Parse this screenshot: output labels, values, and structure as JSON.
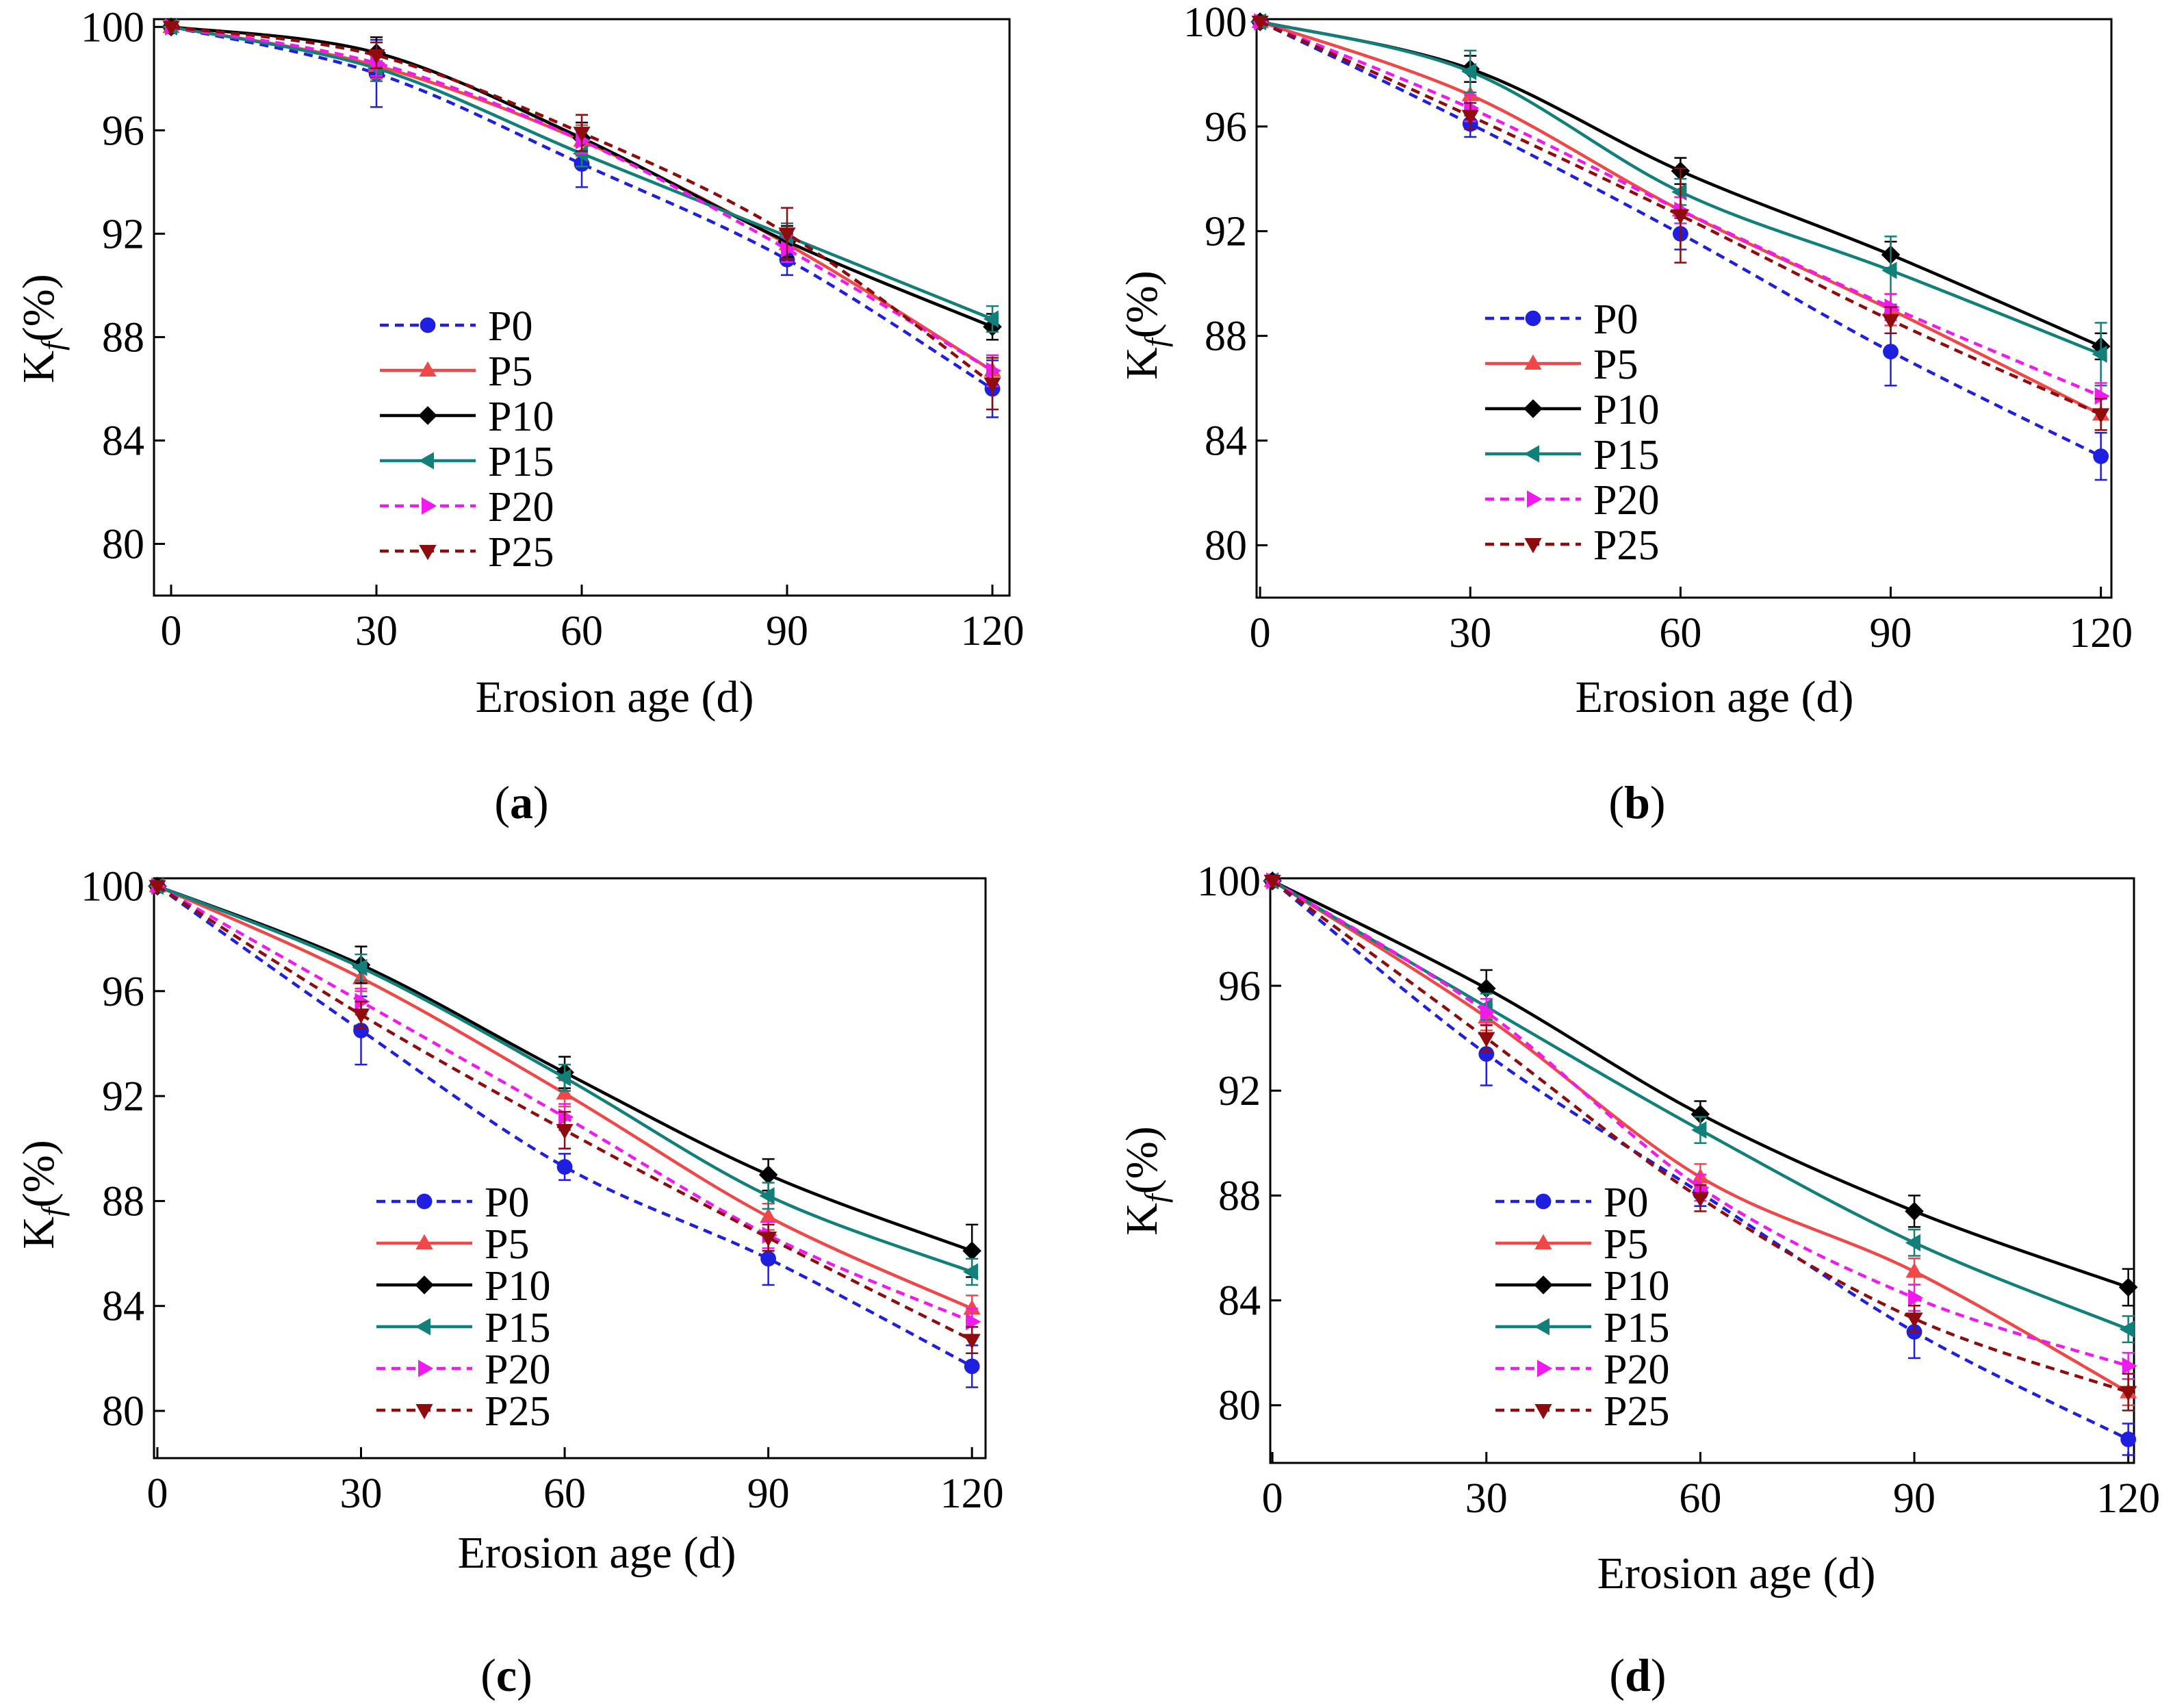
{
  "series_styles": [
    {
      "name": "P0",
      "color": "#1f1fe0",
      "dashed": true,
      "marker": "circle"
    },
    {
      "name": "P5",
      "color": "#f04848",
      "dashed": false,
      "marker": "triangle-up"
    },
    {
      "name": "P10",
      "color": "#000000",
      "dashed": false,
      "marker": "diamond"
    },
    {
      "name": "P15",
      "color": "#12807a",
      "dashed": false,
      "marker": "triangle-left"
    },
    {
      "name": "P20",
      "color": "#f01af0",
      "dashed": true,
      "marker": "triangle-right"
    },
    {
      "name": "P25",
      "color": "#900c0c",
      "dashed": true,
      "marker": "triangle-down"
    }
  ],
  "chart_data": [
    {
      "panel": "a",
      "type": "line",
      "xlabel": "Erosion age (d)",
      "ylabel": "Kf(%)",
      "x": [
        0,
        30,
        60,
        90,
        120
      ],
      "xticks": [
        0,
        30,
        60,
        90,
        120
      ],
      "yticks": [
        80,
        84,
        88,
        92,
        96,
        100
      ],
      "xlim": [
        -2.5,
        122.5
      ],
      "ylim": [
        78,
        100.3
      ],
      "legend": [
        "P0",
        "P5",
        "P10",
        "P15",
        "P20",
        "P25"
      ],
      "series": [
        {
          "name": "P0",
          "values": [
            100,
            98.2,
            94.7,
            91.0,
            86.0
          ],
          "errors": [
            0,
            1.3,
            0.9,
            0.6,
            1.1
          ]
        },
        {
          "name": "P5",
          "values": [
            100,
            98.5,
            95.6,
            91.6,
            86.7
          ],
          "errors": [
            0,
            0.5,
            0.6,
            0.5,
            0.6
          ]
        },
        {
          "name": "P10",
          "values": [
            100,
            99.0,
            95.7,
            91.7,
            88.4
          ],
          "errors": [
            0,
            0.6,
            0.6,
            0.6,
            0.5
          ]
        },
        {
          "name": "P15",
          "values": [
            100,
            98.4,
            95.1,
            91.9,
            88.7
          ],
          "errors": [
            0,
            0.5,
            0.5,
            0.5,
            0.5
          ]
        },
        {
          "name": "P20",
          "values": [
            100,
            98.6,
            95.6,
            91.4,
            86.7
          ],
          "errors": [
            0,
            0.5,
            0.5,
            0.5,
            0.6
          ]
        },
        {
          "name": "P25",
          "values": [
            100,
            98.9,
            95.9,
            92.0,
            86.2
          ],
          "errors": [
            0,
            0.5,
            0.7,
            1.0,
            1.0
          ]
        }
      ]
    },
    {
      "panel": "b",
      "type": "line",
      "xlabel": "Erosion age (d)",
      "ylabel": "Kf(%)",
      "x": [
        0,
        30,
        60,
        90,
        120
      ],
      "xticks": [
        0,
        30,
        60,
        90,
        120
      ],
      "yticks": [
        80,
        84,
        88,
        92,
        96,
        100
      ],
      "xlim": [
        -0.5,
        121.5
      ],
      "ylim": [
        78,
        100.1
      ],
      "legend": [
        "P0",
        "P5",
        "P10",
        "P15",
        "P20",
        "P25"
      ],
      "series": [
        {
          "name": "P0",
          "values": [
            100,
            96.1,
            91.9,
            87.4,
            83.4
          ],
          "errors": [
            0,
            0.5,
            0.6,
            1.3,
            0.9
          ]
        },
        {
          "name": "P5",
          "values": [
            100,
            97.2,
            92.8,
            89.0,
            85.0
          ],
          "errors": [
            0,
            0.5,
            0.5,
            0.6,
            0.6
          ]
        },
        {
          "name": "P10",
          "values": [
            100,
            98.2,
            94.3,
            91.1,
            87.6
          ],
          "errors": [
            0,
            0.5,
            0.5,
            0.5,
            0.5
          ]
        },
        {
          "name": "P15",
          "values": [
            100,
            98.1,
            93.5,
            90.5,
            87.3
          ],
          "errors": [
            0,
            0.8,
            0.5,
            1.3,
            1.2
          ]
        },
        {
          "name": "P20",
          "values": [
            100,
            96.7,
            92.8,
            89.1,
            85.7
          ],
          "errors": [
            0,
            0.5,
            0.5,
            0.5,
            0.5
          ]
        },
        {
          "name": "P25",
          "values": [
            100,
            96.4,
            92.6,
            88.6,
            85.0
          ],
          "errors": [
            0,
            0.5,
            1.8,
            0.5,
            0.6
          ]
        }
      ]
    },
    {
      "panel": "c",
      "type": "line",
      "xlabel": "Erosion age (d)",
      "ylabel": "Kf(%)",
      "x": [
        0,
        30,
        60,
        90,
        120
      ],
      "xticks": [
        0,
        30,
        60,
        90,
        120
      ],
      "yticks": [
        80,
        84,
        88,
        92,
        96,
        100
      ],
      "xlim": [
        -0.5,
        122
      ],
      "ylim": [
        78.2,
        100.3
      ],
      "legend": [
        "P0",
        "P5",
        "P10",
        "P15",
        "P20",
        "P25"
      ],
      "series": [
        {
          "name": "P0",
          "values": [
            100,
            94.5,
            89.3,
            85.8,
            81.7
          ],
          "errors": [
            0,
            1.3,
            0.5,
            1.0,
            0.8
          ]
        },
        {
          "name": "P5",
          "values": [
            100,
            96.5,
            92.1,
            87.4,
            83.9
          ],
          "errors": [
            0,
            0.5,
            0.5,
            0.5,
            0.5
          ]
        },
        {
          "name": "P10",
          "values": [
            100,
            97.0,
            92.9,
            89.0,
            86.1
          ],
          "errors": [
            0,
            0.7,
            0.6,
            0.6,
            1.0
          ]
        },
        {
          "name": "P15",
          "values": [
            100,
            96.9,
            92.7,
            88.2,
            85.3
          ],
          "errors": [
            0,
            0.5,
            0.5,
            0.5,
            0.5
          ]
        },
        {
          "name": "P20",
          "values": [
            100,
            95.6,
            91.2,
            86.7,
            83.4
          ],
          "errors": [
            0,
            0.5,
            0.5,
            0.5,
            0.5
          ]
        },
        {
          "name": "P25",
          "values": [
            100,
            95.1,
            90.7,
            86.6,
            82.7
          ],
          "errors": [
            0,
            0.5,
            0.7,
            0.5,
            0.5
          ]
        }
      ]
    },
    {
      "panel": "d",
      "type": "line",
      "xlabel": "Erosion age (d)",
      "ylabel": "Kf(%)",
      "x": [
        0,
        30,
        60,
        90,
        120
      ],
      "xticks": [
        0,
        30,
        60,
        90,
        120
      ],
      "yticks": [
        80,
        84,
        88,
        92,
        96,
        100
      ],
      "xlim": [
        -0.3,
        120.8
      ],
      "ylim": [
        77.8,
        100.1
      ],
      "legend": [
        "P0",
        "P5",
        "P10",
        "P15",
        "P20",
        "P25"
      ],
      "series": [
        {
          "name": "P0",
          "values": [
            100,
            93.4,
            88.1,
            82.8,
            78.7
          ],
          "errors": [
            0,
            1.2,
            0.5,
            1.0,
            0.6
          ]
        },
        {
          "name": "P5",
          "values": [
            100,
            94.8,
            88.7,
            85.1,
            80.5
          ],
          "errors": [
            0,
            0.5,
            0.5,
            0.5,
            0.5
          ]
        },
        {
          "name": "P10",
          "values": [
            100,
            95.9,
            91.1,
            87.4,
            84.5
          ],
          "errors": [
            0,
            0.7,
            0.5,
            0.6,
            0.7
          ]
        },
        {
          "name": "P15",
          "values": [
            100,
            95.2,
            90.5,
            86.2,
            82.9
          ],
          "errors": [
            0,
            0.5,
            0.5,
            0.5,
            0.5
          ]
        },
        {
          "name": "P20",
          "values": [
            100,
            95.0,
            88.3,
            84.1,
            81.5
          ],
          "errors": [
            0,
            0.5,
            0.5,
            0.5,
            0.5
          ]
        },
        {
          "name": "P25",
          "values": [
            100,
            94.0,
            87.9,
            83.3,
            80.5
          ],
          "errors": [
            0,
            0.5,
            0.5,
            0.5,
            0.7
          ]
        }
      ]
    }
  ],
  "panel_labels": [
    {
      "open": "(",
      "letter": "a",
      "close": ")"
    },
    {
      "open": "(",
      "letter": "b",
      "close": ")"
    },
    {
      "open": "(",
      "letter": "c",
      "close": ")"
    },
    {
      "open": "(",
      "letter": "d",
      "close": ")"
    }
  ]
}
